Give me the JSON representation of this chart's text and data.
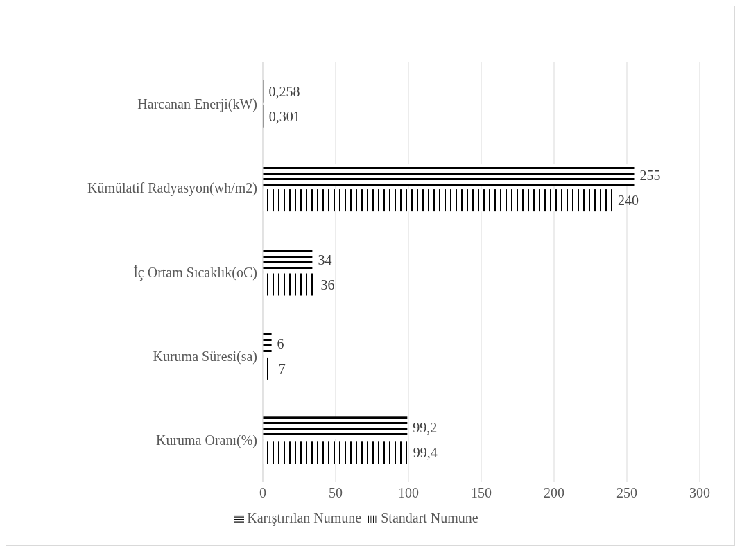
{
  "chart_data": {
    "type": "bar",
    "orientation": "horizontal",
    "categories": [
      "Harcanan Enerji(kW)",
      "Kümülatif Radyasyon(wh/m2)",
      "İç Ortam Sıcaklık(oC)",
      "Kuruma Süresi(sa)",
      "Kuruma Oranı(%)"
    ],
    "series": [
      {
        "name": "Karıştırılan Numune",
        "color": "#000000",
        "values": [
          0.258,
          255,
          34,
          6,
          99.2
        ],
        "value_labels": [
          "0,258",
          "255",
          "34",
          "6",
          "99,2"
        ]
      },
      {
        "name": "Standart Numune",
        "color": "#000000",
        "values": [
          0.301,
          240,
          36,
          7,
          99.4
        ],
        "value_labels": [
          "0,301",
          "240",
          "36",
          "7",
          "99,4"
        ]
      }
    ],
    "xlim": [
      0,
      300
    ],
    "xticks": [
      0,
      50,
      100,
      150,
      200,
      250,
      300
    ],
    "grid": "x",
    "legend": "bottom"
  }
}
